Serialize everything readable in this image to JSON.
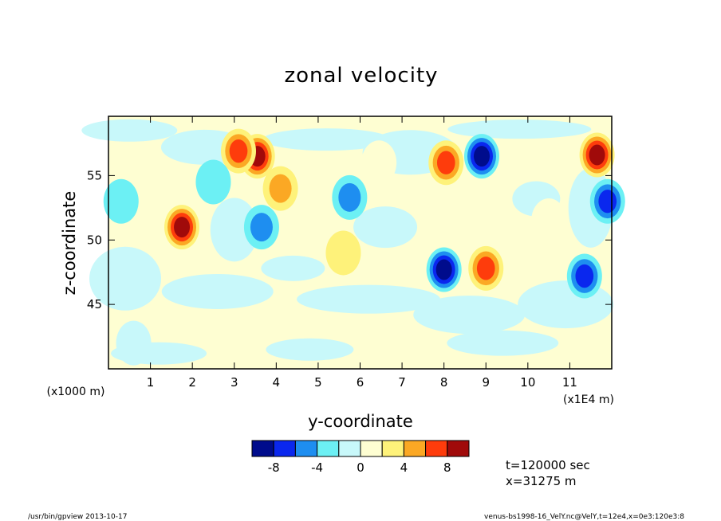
{
  "chart_data": {
    "type": "heatmap",
    "title": "zonal velocity",
    "xlabel": "y-coordinate",
    "ylabel": "z-coordinate",
    "x_unit_left": "(x1000 m)",
    "x_unit_right": "(x1E4 m)",
    "xlim": [
      0,
      12
    ],
    "ylim": [
      40,
      59.6
    ],
    "xticks": [
      1,
      2,
      3,
      4,
      5,
      6,
      7,
      8,
      9,
      10,
      11
    ],
    "yticks": [
      45,
      50,
      55
    ],
    "grid": false,
    "colorbar": {
      "levels": [
        -10,
        -8,
        -6,
        -4,
        -2,
        0,
        2,
        4,
        6,
        8,
        10
      ],
      "tick_labels": [
        "-8",
        "-4",
        "0",
        "4",
        "8"
      ],
      "tick_values": [
        -8,
        -4,
        0,
        4,
        8
      ],
      "colors": [
        "#000c8c",
        "#0a27ee",
        "#1e8ef0",
        "#6cf0f4",
        "#c8f8fa",
        "#fefed2",
        "#fef27a",
        "#fba824",
        "#fe3c0c",
        "#a00a0a"
      ]
    },
    "features": [
      {
        "x": 1.75,
        "z": 51.0,
        "value": 9
      },
      {
        "x": 3.55,
        "z": 56.5,
        "value": 8
      },
      {
        "x": 3.1,
        "z": 56.9,
        "value": 6
      },
      {
        "x": 8.05,
        "z": 56.0,
        "value": 6
      },
      {
        "x": 11.65,
        "z": 56.6,
        "value": 8
      },
      {
        "x": 9.0,
        "z": 47.8,
        "value": 7
      },
      {
        "x": 4.1,
        "z": 54.0,
        "value": 5
      },
      {
        "x": 6.45,
        "z": 56.0,
        "value": 1
      },
      {
        "x": 5.6,
        "z": 49.0,
        "value": 2
      },
      {
        "x": 8.0,
        "z": 47.7,
        "value": -8
      },
      {
        "x": 8.9,
        "z": 56.5,
        "value": -8
      },
      {
        "x": 11.35,
        "z": 47.2,
        "value": -7
      },
      {
        "x": 11.9,
        "z": 53.0,
        "value": -6
      },
      {
        "x": 5.75,
        "z": 53.3,
        "value": -5
      },
      {
        "x": 3.65,
        "z": 51.0,
        "value": -5
      },
      {
        "x": 0.3,
        "z": 53.0,
        "value": -3
      },
      {
        "x": 2.5,
        "z": 54.5,
        "value": -2
      },
      {
        "x": 0.6,
        "z": 42.0,
        "value": -1
      },
      {
        "x": 10.5,
        "z": 51.5,
        "value": 1
      }
    ]
  },
  "info": {
    "time": "t=120000 sec",
    "position": "x=31275 m"
  },
  "footer": {
    "left": "/usr/bin/gpview  2013-10-17",
    "right": "venus-bs1998-16_VelY.nc@VelY,t=12e4,x=0e3:120e3:8"
  }
}
